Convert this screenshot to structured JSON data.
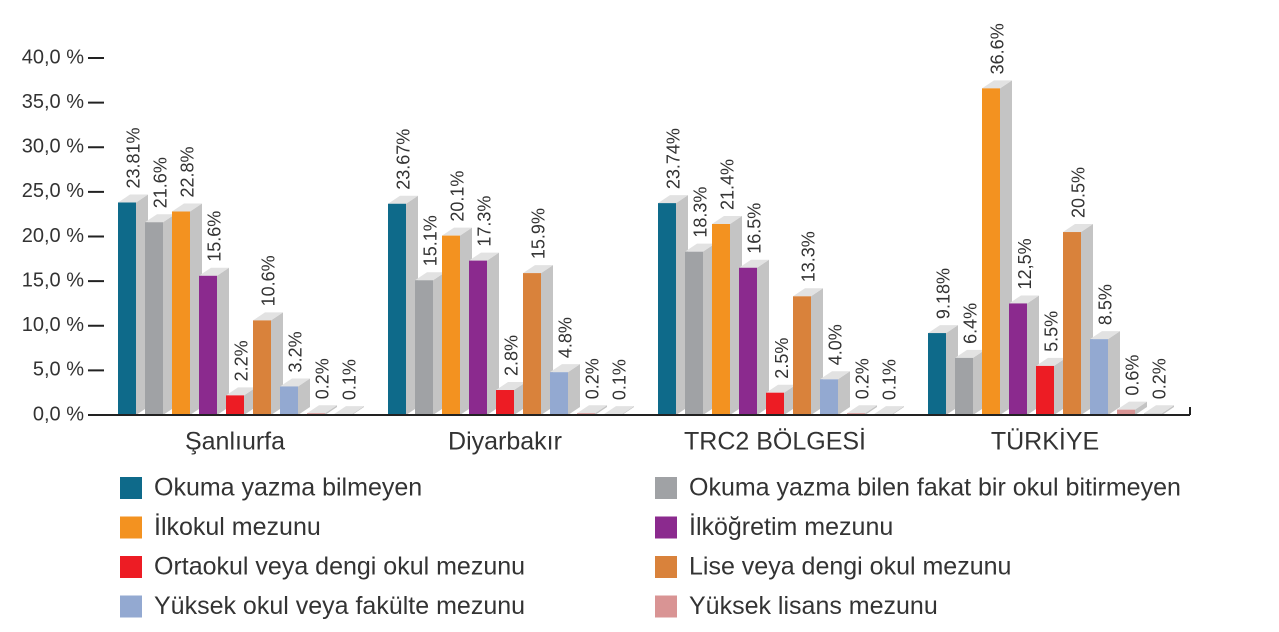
{
  "chart_data": {
    "type": "bar3d",
    "categories": [
      "Şanlıurfa",
      "Diyarbakır",
      "TRC2 BÖLGESİ",
      "TÜRKİYE"
    ],
    "series": [
      {
        "name": "Okuma  yazma bilmeyen",
        "color": "#0e6a8a",
        "values": [
          23.81,
          23.67,
          23.74,
          9.18
        ],
        "value_labels": [
          "23.81%",
          "23.67%",
          "23.74%",
          "9.18%"
        ]
      },
      {
        "name": "Okuma  yazma bilen fakat bir okul bitirmeyen",
        "color": "#a0a2a5",
        "values": [
          21.6,
          15.1,
          18.3,
          6.4
        ],
        "value_labels": [
          "21.6%",
          "15.1%",
          "18.3%",
          "6.4%"
        ]
      },
      {
        "name": "İlkokul mezunu",
        "color": "#f39220",
        "values": [
          22.8,
          20.1,
          21.4,
          36.6
        ],
        "value_labels": [
          "22.8%",
          "20.1%",
          "21.4%",
          "36.6%"
        ]
      },
      {
        "name": "İlköğretim mezunu",
        "color": "#8b2a8e",
        "values": [
          15.6,
          17.3,
          16.5,
          12.5
        ],
        "value_labels": [
          "15.6%",
          "17.3%",
          "16.5%",
          "12,5%"
        ]
      },
      {
        "name": "Ortaokul veya dengi okul mezunu",
        "color": "#ed1c24",
        "values": [
          2.2,
          2.8,
          2.5,
          5.5
        ],
        "value_labels": [
          "2.2%",
          "2.8%",
          "2.5%",
          "5.5%"
        ]
      },
      {
        "name": "Lise veya dengi okul mezunu",
        "color": "#d9823b",
        "values": [
          10.6,
          15.9,
          13.3,
          20.5
        ],
        "value_labels": [
          "10.6%",
          "15.9%",
          "13.3%",
          "20.5%"
        ]
      },
      {
        "name": "Yüksek okul veya fakülte mezunu",
        "color": "#93a9d1",
        "values": [
          3.2,
          4.8,
          4.0,
          8.5
        ],
        "value_labels": [
          "3.2%",
          "4.8%",
          "4.0%",
          "8.5%"
        ]
      },
      {
        "name": "Yüksek lisans mezunu",
        "color": "#d99494",
        "values": [
          0.2,
          0.2,
          0.2,
          0.6
        ],
        "value_labels": [
          "0.2%",
          "0.2%",
          "0.2%",
          "0.6%"
        ]
      },
      {
        "name": null,
        "color": "#cfcfcf",
        "values": [
          0.1,
          0.1,
          0.1,
          0.2
        ],
        "value_labels": [
          "0.1%",
          "0.1%",
          "0.1%",
          "0.2%"
        ]
      }
    ],
    "ylim": [
      0,
      40
    ],
    "yticks": [
      {
        "value": 0,
        "label": "0,0 %"
      },
      {
        "value": 5,
        "label": "5,0 %"
      },
      {
        "value": 10,
        "label": "10,0 %"
      },
      {
        "value": 15,
        "label": "15,0 %"
      },
      {
        "value": 20,
        "label": "20,0 %"
      },
      {
        "value": 25,
        "label": "25,0 %"
      },
      {
        "value": 30,
        "label": "30,0 %"
      },
      {
        "value": 35,
        "label": "35,0 %"
      },
      {
        "value": 40,
        "label": "40,0 %"
      }
    ],
    "grid": false
  }
}
